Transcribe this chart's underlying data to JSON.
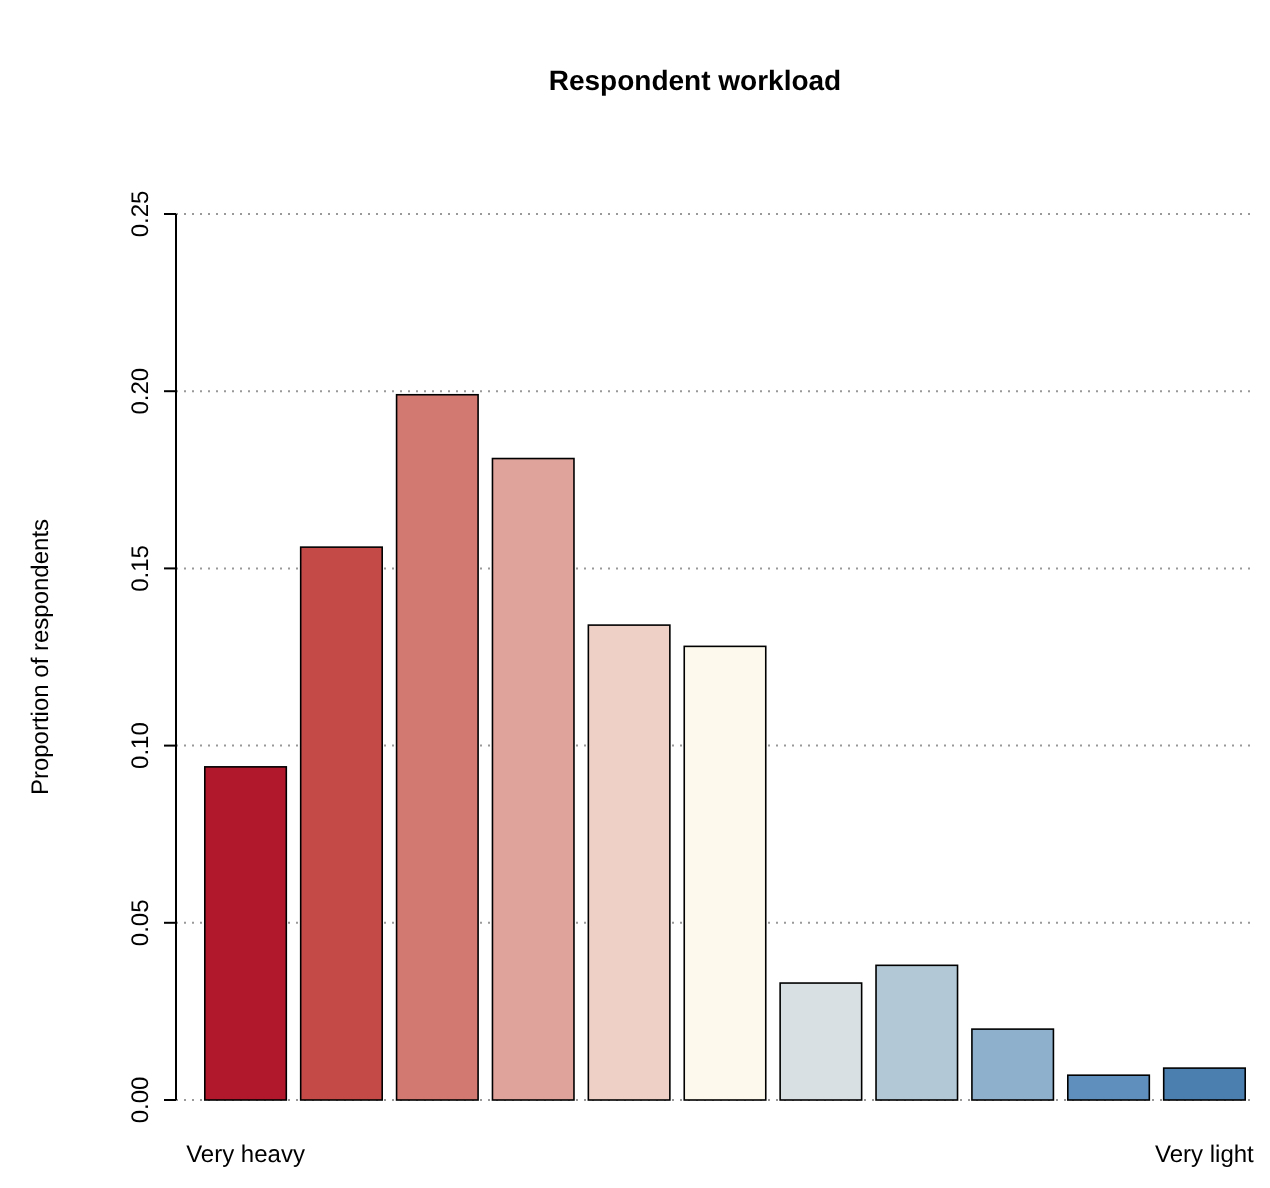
{
  "chart_data": {
    "type": "bar",
    "title": "Respondent workload",
    "ylabel": "Proportion of respondents",
    "categories": [
      "Very heavy",
      null,
      null,
      null,
      null,
      null,
      null,
      null,
      null,
      null,
      "Very light"
    ],
    "values": [
      0.094,
      0.156,
      0.199,
      0.181,
      0.134,
      0.128,
      0.033,
      0.038,
      0.02,
      0.007,
      0.009
    ],
    "colors": [
      "#b2182b",
      "#c44a48",
      "#d27972",
      "#e0a39c",
      "#efd0c6",
      "#fdf9ec",
      "#d8e0e3",
      "#b2c8d6",
      "#8fb0cc",
      "#5e8fbd",
      "#4a7fb0"
    ],
    "ylim": [
      0,
      0.25
    ],
    "yticks": [
      {
        "value": 0,
        "label": "0.00"
      },
      {
        "value": 0.05,
        "label": "0.05"
      },
      {
        "value": 0.1,
        "label": "0.10"
      },
      {
        "value": 0.15,
        "label": "0.15"
      },
      {
        "value": 0.2,
        "label": "0.20"
      },
      {
        "value": 0.25,
        "label": "0.25"
      }
    ],
    "grid": "y"
  }
}
